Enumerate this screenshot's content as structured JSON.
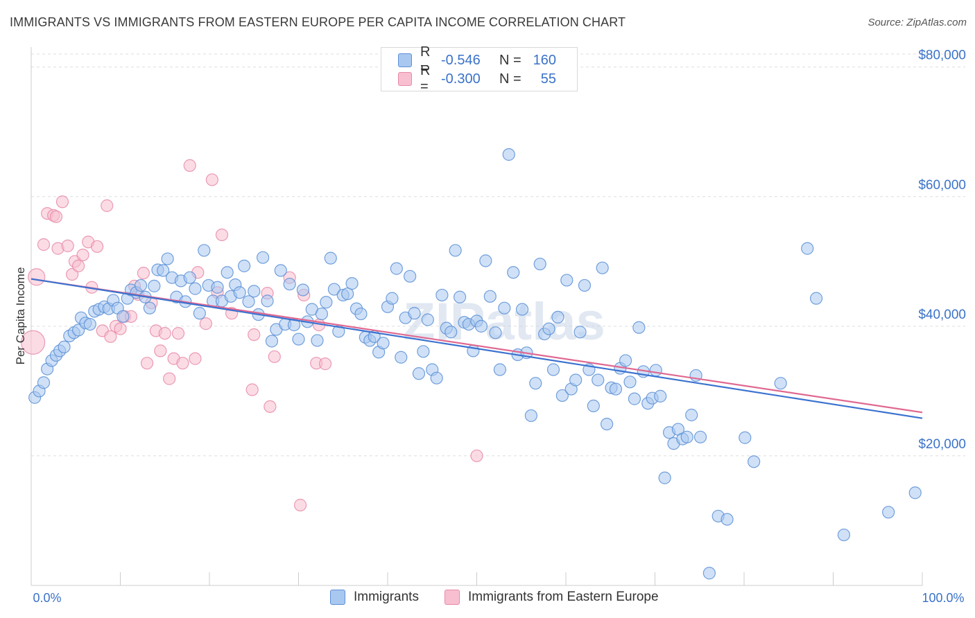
{
  "title": "IMMIGRANTS VS IMMIGRANTS FROM EASTERN EUROPE PER CAPITA INCOME CORRELATION CHART",
  "source": "Source: ZipAtlas.com",
  "watermark": "ZIPatlas",
  "legend_top": {
    "rows": [
      {
        "r_label": "R =",
        "r_value": "-0.546",
        "n_label": "N =",
        "n_value": "160"
      },
      {
        "r_label": "R =",
        "r_value": "-0.300",
        "n_label": "N =",
        "n_value": "55"
      }
    ]
  },
  "legend_bottom": [
    "Immigrants",
    "Immigrants from Eastern Europe"
  ],
  "colors": {
    "blue_fill": "#a9c8f0",
    "blue_stroke": "#5b8fd6",
    "blue_line": "#3a72d0",
    "pink_fill": "#f7bfd0",
    "pink_stroke": "#e88aa8",
    "pink_line": "#e06890",
    "accent_text": "#3a72c8",
    "grid": "#dddddd"
  },
  "chart_data": {
    "type": "scatter",
    "title": "IMMIGRANTS VS IMMIGRANTS FROM EASTERN EUROPE PER CAPITA INCOME CORRELATION CHART",
    "xlabel": "",
    "ylabel": "Per Capita Income",
    "x_tick_labels": [
      "0.0%",
      "100.0%"
    ],
    "y_ticks": [
      20000,
      40000,
      60000,
      80000
    ],
    "y_tick_labels": [
      "$20,000",
      "$40,000",
      "$60,000",
      "$80,000"
    ],
    "xlim": [
      0,
      100
    ],
    "ylim": [
      0,
      82000
    ],
    "series": [
      {
        "name": "Immigrants",
        "color": "blue",
        "r": -0.546,
        "n": 160,
        "trend": {
          "x": [
            0,
            100
          ],
          "y": [
            47300,
            25800
          ]
        },
        "points": [
          [
            0.4,
            29000
          ],
          [
            0.9,
            30000
          ],
          [
            1.4,
            31300
          ],
          [
            1.8,
            33400
          ],
          [
            2.3,
            34700
          ],
          [
            2.8,
            35500
          ],
          [
            3.2,
            36200
          ],
          [
            3.7,
            36800
          ],
          [
            4.3,
            38500
          ],
          [
            4.8,
            39000
          ],
          [
            5.3,
            39400
          ],
          [
            5.6,
            41300
          ],
          [
            6.1,
            40500
          ],
          [
            6.6,
            40300
          ],
          [
            7.1,
            42300
          ],
          [
            7.6,
            42600
          ],
          [
            8.2,
            43000
          ],
          [
            8.7,
            42700
          ],
          [
            9.2,
            44000
          ],
          [
            9.7,
            42800
          ],
          [
            10.3,
            41500
          ],
          [
            10.8,
            44300
          ],
          [
            11.2,
            45600
          ],
          [
            11.8,
            45200
          ],
          [
            12.3,
            46300
          ],
          [
            12.8,
            44500
          ],
          [
            13.3,
            42800
          ],
          [
            13.8,
            46200
          ],
          [
            14.2,
            48700
          ],
          [
            14.8,
            48600
          ],
          [
            15.3,
            50400
          ],
          [
            15.8,
            47500
          ],
          [
            16.3,
            44500
          ],
          [
            16.8,
            47000
          ],
          [
            17.3,
            43800
          ],
          [
            17.8,
            47500
          ],
          [
            18.4,
            45800
          ],
          [
            18.9,
            42000
          ],
          [
            19.4,
            51700
          ],
          [
            19.9,
            46300
          ],
          [
            20.4,
            43900
          ],
          [
            20.9,
            46000
          ],
          [
            21.4,
            43900
          ],
          [
            22.0,
            48300
          ],
          [
            22.4,
            44600
          ],
          [
            22.9,
            46400
          ],
          [
            23.4,
            45200
          ],
          [
            23.9,
            49300
          ],
          [
            24.4,
            43800
          ],
          [
            25.0,
            45400
          ],
          [
            25.5,
            41800
          ],
          [
            26.0,
            50600
          ],
          [
            26.5,
            43900
          ],
          [
            27.0,
            37700
          ],
          [
            27.5,
            39500
          ],
          [
            28.0,
            48600
          ],
          [
            28.5,
            40300
          ],
          [
            29.0,
            46500
          ],
          [
            29.5,
            40200
          ],
          [
            30.0,
            38000
          ],
          [
            30.5,
            45600
          ],
          [
            31.0,
            40700
          ],
          [
            31.5,
            42600
          ],
          [
            32.1,
            37800
          ],
          [
            32.6,
            41900
          ],
          [
            33.1,
            43700
          ],
          [
            33.6,
            50500
          ],
          [
            34.0,
            45700
          ],
          [
            34.5,
            39200
          ],
          [
            35.0,
            44800
          ],
          [
            35.5,
            45000
          ],
          [
            36.0,
            46600
          ],
          [
            36.5,
            42700
          ],
          [
            37.0,
            41900
          ],
          [
            37.5,
            38300
          ],
          [
            38.0,
            37800
          ],
          [
            38.5,
            38400
          ],
          [
            39.0,
            36000
          ],
          [
            39.5,
            37400
          ],
          [
            40.0,
            43000
          ],
          [
            40.5,
            44300
          ],
          [
            41.0,
            48900
          ],
          [
            41.5,
            35200
          ],
          [
            42.0,
            41300
          ],
          [
            42.5,
            47700
          ],
          [
            43.0,
            42000
          ],
          [
            43.5,
            32700
          ],
          [
            44.0,
            36100
          ],
          [
            44.5,
            41000
          ],
          [
            45.0,
            33300
          ],
          [
            45.5,
            32000
          ],
          [
            46.1,
            44800
          ],
          [
            46.6,
            39700
          ],
          [
            47.1,
            39100
          ],
          [
            47.6,
            51700
          ],
          [
            48.1,
            44500
          ],
          [
            48.6,
            40600
          ],
          [
            49.1,
            40300
          ],
          [
            49.6,
            36200
          ],
          [
            50.0,
            40800
          ],
          [
            50.5,
            40000
          ],
          [
            51.0,
            50100
          ],
          [
            51.5,
            44600
          ],
          [
            52.1,
            39000
          ],
          [
            52.6,
            33300
          ],
          [
            53.1,
            42800
          ],
          [
            53.6,
            66500
          ],
          [
            54.1,
            48300
          ],
          [
            54.6,
            35600
          ],
          [
            55.1,
            42600
          ],
          [
            55.6,
            35900
          ],
          [
            56.1,
            26200
          ],
          [
            56.6,
            31200
          ],
          [
            57.1,
            49600
          ],
          [
            57.6,
            38800
          ],
          [
            58.1,
            39600
          ],
          [
            58.6,
            33300
          ],
          [
            59.1,
            41400
          ],
          [
            59.6,
            29300
          ],
          [
            60.1,
            47100
          ],
          [
            60.6,
            30300
          ],
          [
            61.1,
            31700
          ],
          [
            61.6,
            39100
          ],
          [
            62.1,
            46300
          ],
          [
            62.6,
            33300
          ],
          [
            63.1,
            27700
          ],
          [
            63.6,
            31700
          ],
          [
            64.1,
            49000
          ],
          [
            64.6,
            24900
          ],
          [
            65.1,
            30500
          ],
          [
            65.6,
            30300
          ],
          [
            66.1,
            33500
          ],
          [
            66.7,
            34700
          ],
          [
            67.2,
            31400
          ],
          [
            67.7,
            28800
          ],
          [
            68.2,
            39800
          ],
          [
            68.7,
            33000
          ],
          [
            69.2,
            28100
          ],
          [
            69.7,
            28900
          ],
          [
            70.1,
            33200
          ],
          [
            70.6,
            29200
          ],
          [
            71.1,
            16600
          ],
          [
            71.6,
            23600
          ],
          [
            72.1,
            21900
          ],
          [
            72.6,
            24100
          ],
          [
            73.1,
            22600
          ],
          [
            73.6,
            22900
          ],
          [
            74.1,
            26300
          ],
          [
            74.6,
            32400
          ],
          [
            75.1,
            22900
          ],
          [
            76.1,
            1900
          ],
          [
            77.1,
            10700
          ],
          [
            78.1,
            10200
          ],
          [
            80.1,
            22800
          ],
          [
            81.1,
            19100
          ],
          [
            84.1,
            31200
          ],
          [
            87.1,
            52000
          ],
          [
            88.1,
            44300
          ],
          [
            91.2,
            7800
          ],
          [
            96.2,
            11300
          ],
          [
            99.2,
            14300
          ]
        ]
      },
      {
        "name": "Immigrants from Eastern Europe",
        "color": "pink",
        "r": -0.3,
        "n": 55,
        "trend": {
          "x": [
            0,
            100
          ],
          "y": [
            47300,
            26700
          ]
        },
        "points": [
          [
            0.2,
            37500
          ],
          [
            0.6,
            47600
          ],
          [
            1.4,
            52600
          ],
          [
            1.8,
            57400
          ],
          [
            2.5,
            57100
          ],
          [
            2.8,
            56900
          ],
          [
            3.0,
            52000
          ],
          [
            3.5,
            59200
          ],
          [
            4.1,
            52400
          ],
          [
            4.6,
            48000
          ],
          [
            4.9,
            50000
          ],
          [
            5.3,
            49300
          ],
          [
            5.8,
            51000
          ],
          [
            6.4,
            53000
          ],
          [
            6.8,
            46000
          ],
          [
            7.4,
            52300
          ],
          [
            8.0,
            39300
          ],
          [
            8.5,
            58600
          ],
          [
            8.9,
            38400
          ],
          [
            9.5,
            40000
          ],
          [
            10.0,
            39600
          ],
          [
            10.5,
            41500
          ],
          [
            11.2,
            41500
          ],
          [
            11.6,
            46200
          ],
          [
            12.0,
            44900
          ],
          [
            12.6,
            48200
          ],
          [
            13.0,
            34300
          ],
          [
            13.5,
            43600
          ],
          [
            14.0,
            39300
          ],
          [
            14.5,
            36200
          ],
          [
            15.0,
            38900
          ],
          [
            15.5,
            31900
          ],
          [
            16.0,
            35000
          ],
          [
            16.5,
            38900
          ],
          [
            17.0,
            34300
          ],
          [
            17.8,
            64800
          ],
          [
            18.4,
            35000
          ],
          [
            18.7,
            48300
          ],
          [
            19.6,
            40400
          ],
          [
            20.3,
            62600
          ],
          [
            20.9,
            45200
          ],
          [
            21.4,
            54100
          ],
          [
            22.5,
            42000
          ],
          [
            24.8,
            30200
          ],
          [
            25.0,
            38700
          ],
          [
            26.5,
            45100
          ],
          [
            26.8,
            27600
          ],
          [
            27.3,
            35300
          ],
          [
            29.0,
            47500
          ],
          [
            30.2,
            12400
          ],
          [
            30.6,
            44800
          ],
          [
            32.0,
            34300
          ],
          [
            32.3,
            40200
          ],
          [
            33.0,
            34200
          ],
          [
            50.0,
            20000
          ]
        ]
      }
    ]
  }
}
